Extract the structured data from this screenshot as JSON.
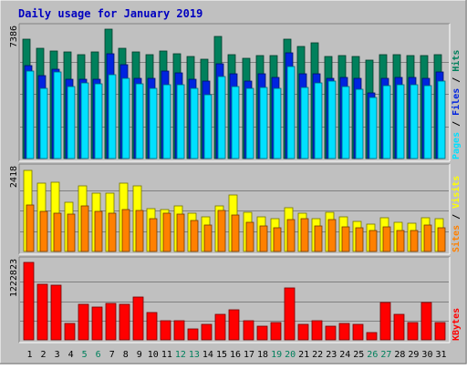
{
  "title": "Daily usage for January 2019",
  "colors": {
    "background": "#C0C0C0",
    "plot": "#C0C0C0",
    "title": "#0000C0",
    "hits": "#00805C",
    "files": "#0024E0",
    "pages": "#00E0FF",
    "visits": "#FFFF00",
    "sites": "#FF8000",
    "kbytes": "#FF0000",
    "weekday_label": "#000000",
    "weekend_label": "#00805C",
    "separator": "#0000C0"
  },
  "chart_data": {
    "type": "bar",
    "title": "Daily usage for January 2019",
    "categories": [
      "1",
      "2",
      "3",
      "4",
      "5",
      "6",
      "7",
      "8",
      "9",
      "10",
      "11",
      "12",
      "13",
      "14",
      "15",
      "16",
      "17",
      "18",
      "19",
      "20",
      "21",
      "22",
      "23",
      "24",
      "25",
      "26",
      "27",
      "28",
      "29",
      "30",
      "31"
    ],
    "weekend_days": [
      "5",
      "6",
      "12",
      "13",
      "19",
      "20",
      "26",
      "27"
    ],
    "panels": [
      {
        "name": "top",
        "scale_label": "7386",
        "ymax": 7386,
        "legend": [
          "Pages",
          "Files",
          "Hits"
        ],
        "series": [
          {
            "name": "Hits",
            "values": [
              6820,
              6280,
              6150,
              6080,
              5950,
              6090,
              7390,
              6310,
              6110,
              5950,
              6150,
              5960,
              5820,
              5680,
              6970,
              5920,
              5720,
              5880,
              5870,
              6800,
              6410,
              6600,
              5820,
              5900,
              5840,
              5640,
              5950,
              5950,
              5900,
              5880,
              5920
            ]
          },
          {
            "name": "Files",
            "values": [
              5300,
              4720,
              5090,
              4520,
              4550,
              4500,
              6000,
              5360,
              4600,
              4590,
              4970,
              4880,
              4530,
              4440,
              5410,
              4840,
              4440,
              4840,
              4620,
              6010,
              4840,
              4820,
              4560,
              4640,
              4570,
              3720,
              4580,
              4640,
              4620,
              4580,
              4920
            ]
          },
          {
            "name": "Pages",
            "values": [
              4990,
              4020,
              4920,
              4120,
              4330,
              4250,
              4800,
              4580,
              4250,
              4020,
              4220,
              4230,
              4000,
              3650,
              4690,
              4130,
              4000,
              4040,
              4000,
              5270,
              4040,
              4300,
              4400,
              4110,
              3930,
              3510,
              4170,
              4230,
              4230,
              4160,
              4430
            ]
          }
        ]
      },
      {
        "name": "middle",
        "scale_label": "2418",
        "ymax": 2418,
        "legend": [
          "Sites",
          "Visits"
        ],
        "series": [
          {
            "name": "Visits",
            "values": [
              2400,
              2010,
              2050,
              1440,
              1940,
              1720,
              1720,
              2020,
              1940,
              1270,
              1230,
              1330,
              1140,
              1030,
              1330,
              1670,
              1150,
              1020,
              960,
              1280,
              1140,
              980,
              1160,
              1010,
              900,
              810,
              990,
              860,
              840,
              990,
              960
            ]
          },
          {
            "name": "Sites",
            "values": [
              1360,
              1180,
              1120,
              1090,
              1330,
              1190,
              1120,
              1230,
              1220,
              960,
              1120,
              1110,
              920,
              790,
              1200,
              1070,
              850,
              740,
              700,
              930,
              960,
              760,
              940,
              720,
              690,
              610,
              730,
              630,
              620,
              780,
              700
            ]
          }
        ]
      },
      {
        "name": "bottom",
        "scale_label": "1222823",
        "ymax": 1222823,
        "legend": [
          "KBytes"
        ],
        "series": [
          {
            "name": "KBytes",
            "values": [
              1222823,
              880000,
              860000,
              260000,
              560000,
              520000,
              580000,
              560000,
              680000,
              430000,
              300000,
              300000,
              170000,
              240000,
              400000,
              480000,
              300000,
              210000,
              280000,
              820000,
              240000,
              300000,
              220000,
              260000,
              240000,
              110000,
              590000,
              400000,
              280000,
              590000,
              280000
            ]
          }
        ]
      }
    ]
  }
}
